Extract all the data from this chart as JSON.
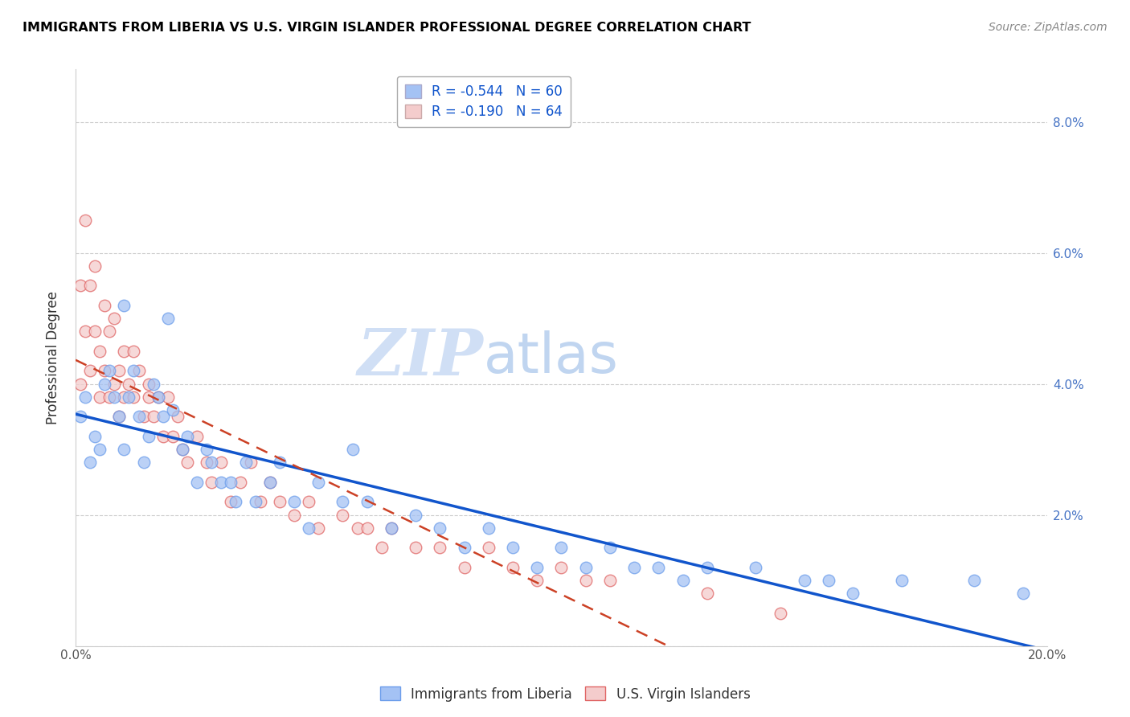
{
  "title": "IMMIGRANTS FROM LIBERIA VS U.S. VIRGIN ISLANDER PROFESSIONAL DEGREE CORRELATION CHART",
  "source": "Source: ZipAtlas.com",
  "ylabel": "Professional Degree",
  "xlabel": "",
  "xlim": [
    0.0,
    0.2
  ],
  "ylim": [
    0.0,
    0.088
  ],
  "ytick_positions": [
    0.0,
    0.02,
    0.04,
    0.06,
    0.08
  ],
  "ytick_labels": [
    "",
    "2.0%",
    "4.0%",
    "6.0%",
    "8.0%"
  ],
  "xtick_positions": [
    0.0,
    0.05,
    0.1,
    0.15,
    0.2
  ],
  "xtick_labels": [
    "0.0%",
    "",
    "",
    "",
    "20.0%"
  ],
  "legend1_label": "R = -0.544   N = 60",
  "legend2_label": "R = -0.190   N = 64",
  "series1_color": "#a4c2f4",
  "series2_color": "#f4cccc",
  "series1_edge": "#6d9eeb",
  "series2_edge": "#e06666",
  "line1_color": "#1155cc",
  "line2_color": "#cc4125",
  "watermark_zip": "ZIP",
  "watermark_atlas": "atlas",
  "watermark_color_zip": "#d0dff5",
  "watermark_color_atlas": "#c5d8f0",
  "title_color": "#000000",
  "source_color": "#888888",
  "grid_color": "#cccccc",
  "legend_label1": "Immigrants from Liberia",
  "legend_label2": "U.S. Virgin Islanders",
  "series1_x": [
    0.001,
    0.002,
    0.003,
    0.004,
    0.005,
    0.006,
    0.007,
    0.008,
    0.009,
    0.01,
    0.01,
    0.011,
    0.012,
    0.013,
    0.014,
    0.015,
    0.016,
    0.017,
    0.018,
    0.019,
    0.02,
    0.022,
    0.023,
    0.025,
    0.027,
    0.028,
    0.03,
    0.032,
    0.033,
    0.035,
    0.037,
    0.04,
    0.042,
    0.045,
    0.048,
    0.05,
    0.055,
    0.057,
    0.06,
    0.065,
    0.07,
    0.075,
    0.08,
    0.085,
    0.09,
    0.095,
    0.1,
    0.105,
    0.11,
    0.115,
    0.12,
    0.125,
    0.13,
    0.14,
    0.15,
    0.155,
    0.16,
    0.17,
    0.185,
    0.195
  ],
  "series1_y": [
    0.035,
    0.038,
    0.028,
    0.032,
    0.03,
    0.04,
    0.042,
    0.038,
    0.035,
    0.03,
    0.052,
    0.038,
    0.042,
    0.035,
    0.028,
    0.032,
    0.04,
    0.038,
    0.035,
    0.05,
    0.036,
    0.03,
    0.032,
    0.025,
    0.03,
    0.028,
    0.025,
    0.025,
    0.022,
    0.028,
    0.022,
    0.025,
    0.028,
    0.022,
    0.018,
    0.025,
    0.022,
    0.03,
    0.022,
    0.018,
    0.02,
    0.018,
    0.015,
    0.018,
    0.015,
    0.012,
    0.015,
    0.012,
    0.015,
    0.012,
    0.012,
    0.01,
    0.012,
    0.012,
    0.01,
    0.01,
    0.008,
    0.01,
    0.01,
    0.008
  ],
  "series2_x": [
    0.001,
    0.001,
    0.002,
    0.002,
    0.003,
    0.003,
    0.004,
    0.004,
    0.005,
    0.005,
    0.006,
    0.006,
    0.007,
    0.007,
    0.008,
    0.008,
    0.009,
    0.009,
    0.01,
    0.01,
    0.011,
    0.012,
    0.012,
    0.013,
    0.014,
    0.015,
    0.015,
    0.016,
    0.017,
    0.018,
    0.019,
    0.02,
    0.021,
    0.022,
    0.023,
    0.025,
    0.027,
    0.028,
    0.03,
    0.032,
    0.034,
    0.036,
    0.038,
    0.04,
    0.042,
    0.045,
    0.048,
    0.05,
    0.055,
    0.058,
    0.06,
    0.063,
    0.065,
    0.07,
    0.075,
    0.08,
    0.085,
    0.09,
    0.095,
    0.1,
    0.105,
    0.11,
    0.13,
    0.145
  ],
  "series2_y": [
    0.055,
    0.04,
    0.065,
    0.048,
    0.042,
    0.055,
    0.048,
    0.058,
    0.045,
    0.038,
    0.042,
    0.052,
    0.048,
    0.038,
    0.04,
    0.05,
    0.042,
    0.035,
    0.038,
    0.045,
    0.04,
    0.038,
    0.045,
    0.042,
    0.035,
    0.038,
    0.04,
    0.035,
    0.038,
    0.032,
    0.038,
    0.032,
    0.035,
    0.03,
    0.028,
    0.032,
    0.028,
    0.025,
    0.028,
    0.022,
    0.025,
    0.028,
    0.022,
    0.025,
    0.022,
    0.02,
    0.022,
    0.018,
    0.02,
    0.018,
    0.018,
    0.015,
    0.018,
    0.015,
    0.015,
    0.012,
    0.015,
    0.012,
    0.01,
    0.012,
    0.01,
    0.01,
    0.008,
    0.005
  ]
}
